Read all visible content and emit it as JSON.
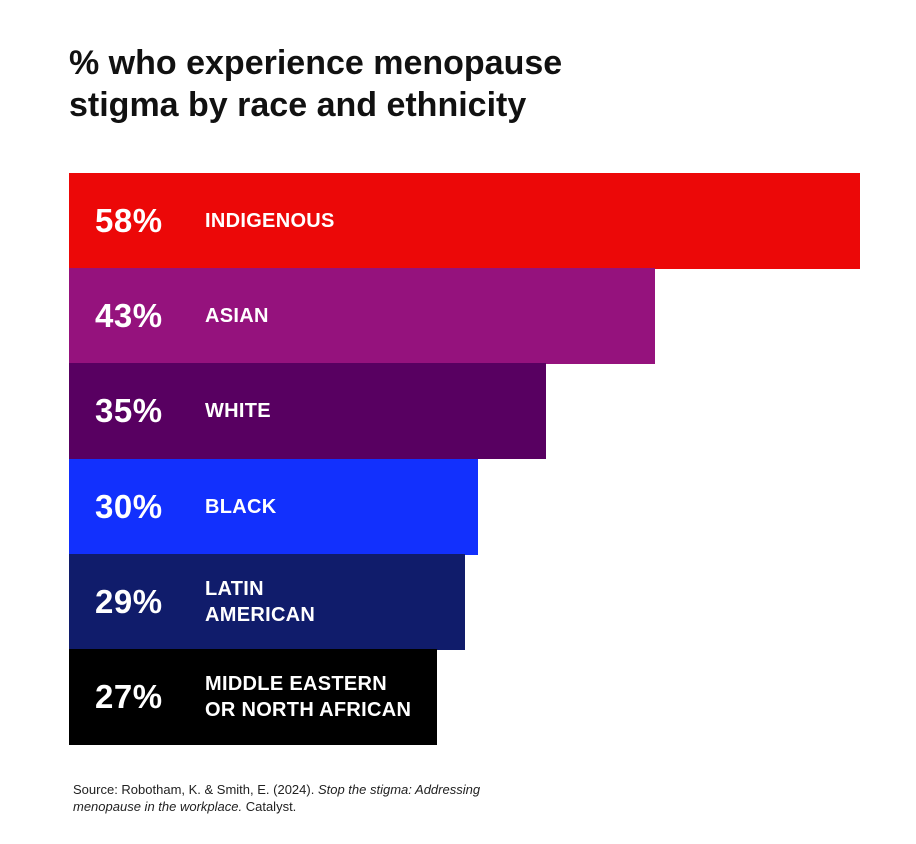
{
  "title_lines": [
    "% who experience menopause",
    "stigma by race and ethnicity"
  ],
  "source": {
    "prefix": "Source: Robotham, K. & Smith, E. (2024). ",
    "italic": "Stop the stigma: Addressing menopause in the workplace.",
    "suffix": " Catalyst."
  },
  "chart_data": {
    "type": "bar",
    "orientation": "horizontal",
    "title": "% who experience menopause stigma by race and ethnicity",
    "categories": [
      "INDIGENOUS",
      "ASIAN",
      "WHITE",
      "BLACK",
      "LATIN\nAMERICAN",
      "MIDDLE EASTERN\nOR NORTH AFRICAN"
    ],
    "values": [
      58,
      43,
      35,
      30,
      29,
      27
    ],
    "value_labels": [
      "58%",
      "43%",
      "35%",
      "30%",
      "29%",
      "27%"
    ],
    "colors": [
      "#ec0808",
      "#95127d",
      "#580061",
      "#1230fd",
      "#101c6b",
      "#000000"
    ],
    "xlim": [
      0,
      58
    ],
    "grid": false,
    "legend": "none"
  }
}
